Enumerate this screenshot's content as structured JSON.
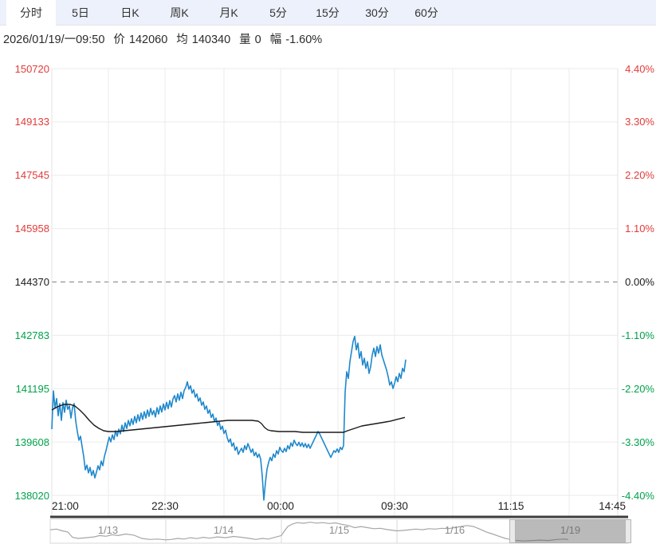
{
  "tabs": {
    "items": [
      {
        "label": "分时",
        "active": true
      },
      {
        "label": "5日",
        "active": false
      },
      {
        "label": "日K",
        "active": false
      },
      {
        "label": "周K",
        "active": false
      },
      {
        "label": "月K",
        "active": false
      },
      {
        "label": "5分",
        "active": false
      },
      {
        "label": "15分",
        "active": false
      },
      {
        "label": "30分",
        "active": false
      },
      {
        "label": "60分",
        "active": false
      }
    ]
  },
  "info_bar": {
    "datetime": "2026/01/19/一09:50",
    "price_label": "价",
    "price": "142060",
    "avg_label": "均",
    "avg": "140340",
    "volume_label": "量",
    "volume": "0",
    "change_label": "幅",
    "change": "-1.60%"
  },
  "colors": {
    "up": "#e23b3b",
    "down": "#00a24a",
    "flat": "#1a1a1a",
    "price_line": "#1f88cc",
    "avg_line": "#1a1a1a",
    "grid": "#ebebeb",
    "plot_border": "#e3e3e3",
    "zero_dash": "#808080",
    "tabbar_bg": "#edf1fb",
    "axis_line": "#3d3d3d",
    "nav_spark": "#a6a6a6",
    "nav_border": "#d9d9d9",
    "nav_label": "#8c8c8c"
  },
  "chart_data": {
    "type": "line",
    "title": "intraday minute chart with average line",
    "baseline_price": 144370,
    "y_gridline_prices": [
      150720,
      149133,
      147545,
      145958,
      144370,
      142783,
      141195,
      139608,
      138020
    ],
    "y_axis_left": {
      "labels": [
        "150720",
        "149133",
        "147545",
        "145958",
        "144370",
        "142783",
        "141195",
        "139608",
        "138020"
      ],
      "tones": [
        "up",
        "up",
        "up",
        "up",
        "flat",
        "down",
        "down",
        "down",
        "down"
      ]
    },
    "y_axis_right": {
      "labels": [
        "4.40%",
        "3.30%",
        "2.20%",
        "1.10%",
        "0.00%",
        "-1.10%",
        "-2.20%",
        "-3.30%",
        "-4.40%"
      ],
      "tones": [
        "up",
        "up",
        "up",
        "up",
        "flat",
        "down",
        "down",
        "down",
        "down"
      ]
    },
    "x_axis": {
      "range": [
        0,
        710
      ],
      "labels": [
        "21:00",
        "22:30",
        "00:00",
        "09:30",
        "11:15",
        "14:45"
      ],
      "label_positions": [
        0,
        142,
        287,
        430,
        576,
        710
      ],
      "minor_gridlines": [
        71,
        216,
        359,
        503,
        649
      ],
      "grid_on": true
    },
    "series": [
      {
        "name": "price",
        "color_key": "price_line",
        "x_start": 0,
        "x_step": 2,
        "values": [
          139990,
          141130,
          140610,
          140900,
          140390,
          140750,
          140250,
          140780,
          140490,
          140850,
          140580,
          140680,
          140320,
          140630,
          140750,
          140230,
          139920,
          139660,
          139780,
          139470,
          139180,
          138780,
          138920,
          138690,
          138850,
          138610,
          138760,
          138540,
          138710,
          138900,
          138780,
          139040,
          138900,
          139180,
          139350,
          139560,
          139750,
          139610,
          139820,
          139680,
          139940,
          139780,
          139990,
          139850,
          140110,
          139920,
          140180,
          140010,
          140250,
          140090,
          140300,
          140130,
          140370,
          140180,
          140420,
          140230,
          140470,
          140280,
          140510,
          140320,
          140560,
          140370,
          140610,
          140420,
          140540,
          140350,
          140630,
          140440,
          140680,
          140500,
          140740,
          140560,
          140790,
          140600,
          140840,
          140650,
          140890,
          140990,
          140800,
          141040,
          140850,
          141090,
          140900,
          141140,
          141230,
          141400,
          141180,
          141280,
          141060,
          141160,
          140940,
          141040,
          140820,
          140920,
          140700,
          140800,
          140580,
          140680,
          140460,
          140560,
          140340,
          140440,
          140220,
          140320,
          140100,
          140200,
          139980,
          140080,
          139860,
          139960,
          139740,
          139600,
          139700,
          139480,
          139580,
          139360,
          139460,
          139240,
          139340,
          139420,
          139300,
          139500,
          139380,
          139560,
          139440,
          139300,
          139400,
          139200,
          139300,
          139150,
          139250,
          139100,
          138600,
          137880,
          138400,
          138800,
          139000,
          139150,
          139050,
          139250,
          139150,
          139350,
          139250,
          139450,
          139350,
          139300,
          139420,
          139320,
          139500,
          139400,
          139580,
          139480,
          139660,
          139560,
          139500,
          139600,
          139480,
          139580,
          139460,
          139560,
          139440,
          139540,
          139420,
          139520,
          139620,
          139720,
          139820,
          139920,
          139850,
          139750,
          139650,
          139550,
          139450,
          139350,
          139250,
          139150,
          139250,
          139350,
          139300,
          139400,
          139300,
          139450,
          139380,
          139500,
          141100,
          141700,
          141500,
          142000,
          142300,
          142600,
          142750,
          142350,
          142550,
          142100,
          142300,
          141900,
          142100,
          141800,
          142000,
          141650,
          141850,
          142200,
          142400,
          142150,
          142450,
          142250,
          142500,
          142200,
          142050,
          141900,
          141750,
          141550,
          141300,
          141400,
          141200,
          141350,
          141550,
          141400,
          141650,
          141500,
          141800,
          141700,
          142060
        ]
      },
      {
        "name": "average",
        "color_key": "avg_line",
        "points": [
          [
            0,
            140560
          ],
          [
            7,
            140655
          ],
          [
            15,
            140726
          ],
          [
            23,
            140726
          ],
          [
            29,
            140679
          ],
          [
            35,
            140560
          ],
          [
            41,
            140418
          ],
          [
            47,
            140252
          ],
          [
            53,
            140109
          ],
          [
            59,
            140014
          ],
          [
            65,
            139943
          ],
          [
            71,
            139919
          ],
          [
            81,
            139919
          ],
          [
            91,
            139943
          ],
          [
            101,
            139966
          ],
          [
            111,
            139990
          ],
          [
            121,
            140014
          ],
          [
            131,
            140038
          ],
          [
            141,
            140061
          ],
          [
            151,
            140085
          ],
          [
            161,
            140109
          ],
          [
            171,
            140133
          ],
          [
            181,
            140156
          ],
          [
            191,
            140180
          ],
          [
            201,
            140204
          ],
          [
            211,
            140228
          ],
          [
            221,
            140252
          ],
          [
            231,
            140252
          ],
          [
            241,
            140252
          ],
          [
            251,
            140252
          ],
          [
            259,
            140228
          ],
          [
            263,
            140156
          ],
          [
            267,
            140038
          ],
          [
            271,
            139966
          ],
          [
            275,
            139943
          ],
          [
            285,
            139919
          ],
          [
            295,
            139919
          ],
          [
            305,
            139919
          ],
          [
            315,
            139895
          ],
          [
            330,
            139895
          ],
          [
            345,
            139895
          ],
          [
            360,
            139895
          ],
          [
            366,
            139895
          ],
          [
            371,
            139943
          ],
          [
            377,
            139990
          ],
          [
            383,
            140038
          ],
          [
            389,
            140085
          ],
          [
            395,
            140109
          ],
          [
            401,
            140133
          ],
          [
            407,
            140156
          ],
          [
            413,
            140180
          ],
          [
            419,
            140204
          ],
          [
            425,
            140230
          ],
          [
            433,
            140280
          ],
          [
            443,
            140340
          ]
        ]
      }
    ]
  },
  "navigator": {
    "segments": [
      {
        "label": "1/13",
        "selected": false
      },
      {
        "label": "1/14",
        "selected": false
      },
      {
        "label": "1/15",
        "selected": false
      },
      {
        "label": "1/16",
        "selected": false
      },
      {
        "label": "1/19",
        "selected": true
      }
    ],
    "sparkline": {
      "x_range": [
        0,
        725
      ],
      "points": [
        [
          0,
          0.45
        ],
        [
          8,
          0.42
        ],
        [
          15,
          0.5
        ],
        [
          22,
          0.55
        ],
        [
          28,
          0.8
        ],
        [
          35,
          0.85
        ],
        [
          45,
          0.82
        ],
        [
          55,
          0.78
        ],
        [
          62,
          0.72
        ],
        [
          70,
          0.75
        ],
        [
          78,
          0.68
        ],
        [
          85,
          0.72
        ],
        [
          95,
          0.65
        ],
        [
          105,
          0.7
        ],
        [
          115,
          0.85
        ],
        [
          125,
          0.9
        ],
        [
          135,
          0.88
        ],
        [
          145,
          0.92
        ],
        [
          152,
          0.9
        ],
        [
          160,
          0.85
        ],
        [
          168,
          0.88
        ],
        [
          176,
          0.82
        ],
        [
          184,
          0.86
        ],
        [
          192,
          0.8
        ],
        [
          200,
          0.84
        ],
        [
          210,
          0.78
        ],
        [
          220,
          0.82
        ],
        [
          230,
          0.76
        ],
        [
          240,
          0.8
        ],
        [
          250,
          0.85
        ],
        [
          258,
          0.9
        ],
        [
          266,
          0.85
        ],
        [
          274,
          0.88
        ],
        [
          282,
          0.8
        ],
        [
          290,
          0.72
        ],
        [
          294,
          0.5
        ],
        [
          298,
          0.3
        ],
        [
          304,
          0.18
        ],
        [
          310,
          0.12
        ],
        [
          318,
          0.15
        ],
        [
          326,
          0.1
        ],
        [
          334,
          0.14
        ],
        [
          342,
          0.12
        ],
        [
          350,
          0.16
        ],
        [
          358,
          0.13
        ],
        [
          366,
          0.2
        ],
        [
          374,
          0.25
        ],
        [
          382,
          0.35
        ],
        [
          390,
          0.3
        ],
        [
          398,
          0.35
        ],
        [
          406,
          0.4
        ],
        [
          414,
          0.38
        ],
        [
          424,
          0.45
        ],
        [
          435,
          0.5
        ],
        [
          443,
          0.48
        ],
        [
          451,
          0.45
        ],
        [
          459,
          0.42
        ],
        [
          467,
          0.45
        ],
        [
          475,
          0.4
        ],
        [
          483,
          0.42
        ],
        [
          491,
          0.38
        ],
        [
          499,
          0.4
        ],
        [
          507,
          0.35
        ],
        [
          515,
          0.3
        ],
        [
          523,
          0.25
        ],
        [
          531,
          0.3
        ],
        [
          539,
          0.42
        ],
        [
          547,
          0.55
        ],
        [
          555,
          0.65
        ],
        [
          563,
          0.75
        ],
        [
          571,
          0.85
        ],
        [
          580,
          0.92
        ],
        [
          585,
          0.95
        ],
        [
          595,
          0.97
        ],
        [
          605,
          0.95
        ],
        [
          615,
          0.93
        ],
        [
          625,
          0.95
        ],
        [
          635,
          0.9
        ],
        [
          645,
          0.88
        ],
        [
          650,
          0.9
        ]
      ]
    }
  }
}
